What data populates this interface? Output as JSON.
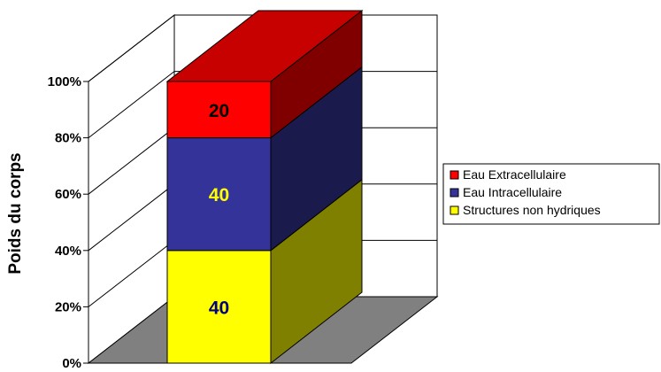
{
  "chart_data": {
    "type": "bar",
    "stacked": true,
    "three_d": true,
    "categories": [
      ""
    ],
    "ylabel": "Poids du corps",
    "xlabel": "",
    "title": "",
    "ylim": [
      0,
      100
    ],
    "y_ticks": [
      "0%",
      "20%",
      "40%",
      "60%",
      "80%",
      "100%"
    ],
    "grid": true,
    "legend_position": "right",
    "series": [
      {
        "name": "Structures non hydriques",
        "values": [
          40
        ],
        "color": "#ffff00",
        "label_color": "#000080",
        "data_label": "40"
      },
      {
        "name": "Eau Intracellulaire",
        "values": [
          40
        ],
        "color": "#333399",
        "label_color": "#ffff00",
        "data_label": "40"
      },
      {
        "name": "Eau Extracellulaire",
        "values": [
          20
        ],
        "color": "#ff0000",
        "label_color": "#000000",
        "data_label": "20"
      }
    ],
    "legend_order": [
      "Eau Extracellulaire",
      "Eau Intracellulaire",
      "Structures non hydriques"
    ]
  }
}
